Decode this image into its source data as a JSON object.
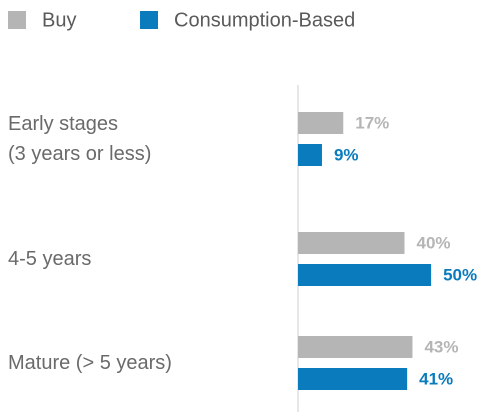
{
  "chart_data": {
    "type": "hbar",
    "categories": [
      "Early stages\n(3 years or less)",
      "4-5 years",
      "Mature (> 5 years)"
    ],
    "series": [
      {
        "name": "Buy",
        "color": "#b5b5b5",
        "values": [
          17,
          40,
          43
        ],
        "value_labels": [
          "17%",
          "40%",
          "43%"
        ]
      },
      {
        "name": "Consumption-Based",
        "color": "#0a7bbd",
        "values": [
          9,
          50,
          41
        ],
        "value_labels": [
          "9%",
          "50%",
          "41%"
        ]
      }
    ],
    "xlim": [
      0,
      74
    ]
  }
}
